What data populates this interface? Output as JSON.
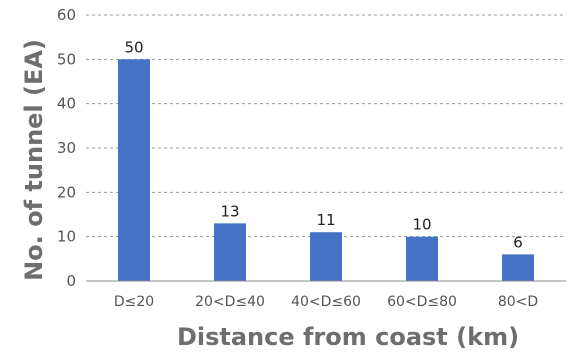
{
  "chart_data": {
    "type": "bar",
    "categories": [
      "D≤20",
      "20<D≤40",
      "40<D≤60",
      "60<D≤80",
      "80<D"
    ],
    "values": [
      50,
      13,
      11,
      10,
      6
    ],
    "data_labels": [
      "50",
      "13",
      "11",
      "10",
      "6"
    ],
    "yticks": [
      "0",
      "10",
      "20",
      "30",
      "40",
      "50",
      "60"
    ],
    "ylim": [
      0,
      60
    ],
    "title": "",
    "xlabel": "Distance from coast (km)",
    "ylabel": "No. of tunnel (EA)",
    "grid": "horizontal dashed",
    "bar_color": "#4472c4",
    "grid_color": "#999999",
    "axis_color": "#888888"
  }
}
